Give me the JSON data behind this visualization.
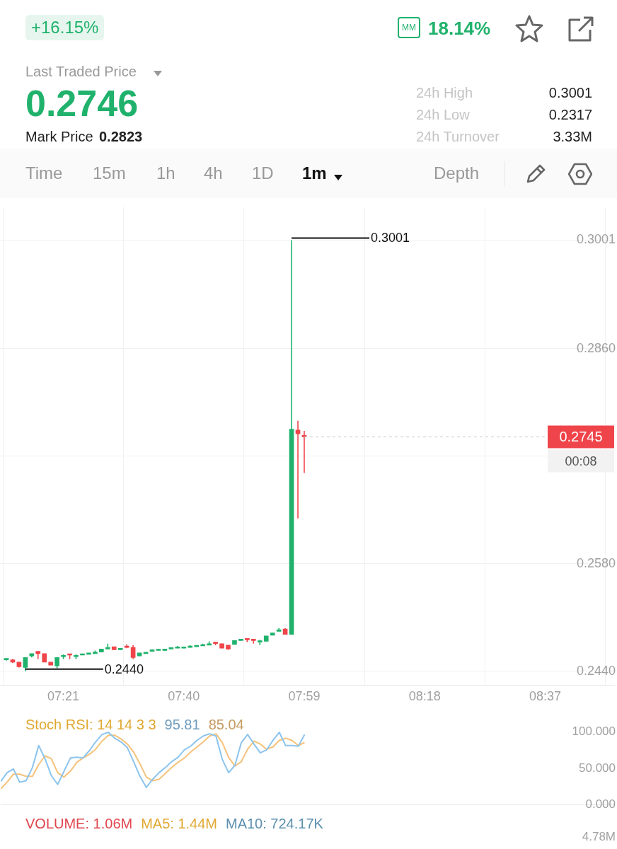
{
  "chart_data": [
    {
      "type": "other",
      "annotations": [
        "+16.15%",
        "MM",
        "18.14%",
        "Last Traded Price",
        "0.2746",
        "Mark Price",
        "0.2823",
        "24h High",
        "0.3001",
        "24h Low",
        "0.2317",
        "24h Turnover",
        "3.33M",
        "Time",
        "15m",
        "1h",
        "4h",
        "1D",
        "1m",
        "Depth"
      ]
    },
    {
      "type": "candlestick",
      "x": [
        7.2,
        7.2167,
        7.2333,
        7.25,
        7.2667,
        7.2833,
        7.3,
        7.3167,
        7.3333,
        7.35,
        7.3667,
        7.3833,
        7.4,
        7.4167,
        7.4333,
        7.45,
        7.4667,
        7.4833,
        7.5,
        7.5167,
        7.5333,
        7.55,
        7.5667,
        7.5833,
        7.6,
        7.6167,
        7.6333,
        7.65,
        7.6667,
        7.6833,
        7.7,
        7.7167,
        7.7333,
        7.75,
        7.7667,
        7.7833,
        7.8,
        7.8167,
        7.8333,
        7.85,
        7.8667,
        7.8833,
        7.9,
        7.9167,
        7.9333,
        7.95,
        7.9667,
        7.9833
      ],
      "ohlc": [
        [
          0.2455,
          0.2456,
          0.2454,
          0.2456
        ],
        [
          0.2455,
          0.2456,
          0.2451,
          0.2452
        ],
        [
          0.2452,
          0.2452,
          0.2445,
          0.2446
        ],
        [
          0.2445,
          0.2458,
          0.244,
          0.2458
        ],
        [
          0.246,
          0.2463,
          0.2458,
          0.2463
        ],
        [
          0.2466,
          0.2466,
          0.2456,
          0.2463
        ],
        [
          0.2463,
          0.2463,
          0.2452,
          0.2452
        ],
        [
          0.2452,
          0.2452,
          0.2448,
          0.2448
        ],
        [
          0.2447,
          0.2458,
          0.2444,
          0.2458
        ],
        [
          0.2459,
          0.2462,
          0.2456,
          0.246
        ],
        [
          0.2462,
          0.2462,
          0.2456,
          0.2461
        ],
        [
          0.2459,
          0.2462,
          0.2456,
          0.246
        ],
        [
          0.2461,
          0.2463,
          0.2461,
          0.2462
        ],
        [
          0.2462,
          0.2464,
          0.2462,
          0.2464
        ],
        [
          0.2463,
          0.2467,
          0.2463,
          0.2465
        ],
        [
          0.2465,
          0.2469,
          0.2465,
          0.2469
        ],
        [
          0.2469,
          0.2476,
          0.2469,
          0.2471
        ],
        [
          0.2472,
          0.2472,
          0.2468,
          0.2468
        ],
        [
          0.2468,
          0.247,
          0.2468,
          0.247
        ],
        [
          0.2472,
          0.2475,
          0.247,
          0.2471
        ],
        [
          0.2471,
          0.2474,
          0.2456,
          0.2458
        ],
        [
          0.246,
          0.2464,
          0.246,
          0.2464
        ],
        [
          0.2463,
          0.2464,
          0.2463,
          0.2464
        ],
        [
          0.2466,
          0.2468,
          0.2466,
          0.2468
        ],
        [
          0.2467,
          0.2469,
          0.2467,
          0.2468
        ],
        [
          0.2467,
          0.2469,
          0.2467,
          0.2469
        ],
        [
          0.2469,
          0.247,
          0.2469,
          0.247
        ],
        [
          0.247,
          0.2473,
          0.247,
          0.2471
        ],
        [
          0.247,
          0.2471,
          0.247,
          0.2471
        ],
        [
          0.2471,
          0.2474,
          0.2471,
          0.2472
        ],
        [
          0.2472,
          0.2473,
          0.2472,
          0.2473
        ],
        [
          0.2473,
          0.2476,
          0.2473,
          0.2474
        ],
        [
          0.2474,
          0.2479,
          0.2474,
          0.2475
        ],
        [
          0.2478,
          0.2478,
          0.2474,
          0.2476
        ],
        [
          0.2476,
          0.2476,
          0.247,
          0.247
        ],
        [
          0.2474,
          0.2474,
          0.2468,
          0.2469
        ],
        [
          0.2475,
          0.248,
          0.2475,
          0.248
        ],
        [
          0.248,
          0.2481,
          0.248,
          0.2481
        ],
        [
          0.2482,
          0.2482,
          0.2478,
          0.2481
        ],
        [
          0.2481,
          0.2481,
          0.2476,
          0.248
        ],
        [
          0.2478,
          0.2481,
          0.2474,
          0.2479
        ],
        [
          0.2479,
          0.2486,
          0.2479,
          0.2486
        ],
        [
          0.2487,
          0.249,
          0.2487,
          0.249
        ],
        [
          0.2492,
          0.2496,
          0.2492,
          0.2494
        ],
        [
          0.2495,
          0.2496,
          0.2488,
          0.2488
        ],
        [
          0.2488,
          0.3001,
          0.2488,
          0.2755
        ],
        [
          0.2754,
          0.2766,
          0.2639,
          0.2749
        ],
        [
          0.2747,
          0.2753,
          0.2698,
          0.2745
        ]
      ],
      "colors": [
        "#20b26c",
        "#ef454a",
        "#ef454a",
        "#20b26c",
        "#20b26c",
        "#ef454a",
        "#ef454a",
        "#ef454a",
        "#20b26c",
        "#20b26c",
        "#ef454a",
        "#20b26c",
        "#20b26c",
        "#20b26c",
        "#20b26c",
        "#20b26c",
        "#20b26c",
        "#ef454a",
        "#20b26c",
        "#ef454a",
        "#ef454a",
        "#20b26c",
        "#20b26c",
        "#20b26c",
        "#20b26c",
        "#20b26c",
        "#20b26c",
        "#20b26c",
        "#20b26c",
        "#20b26c",
        "#20b26c",
        "#20b26c",
        "#20b26c",
        "#ef454a",
        "#ef454a",
        "#ef454a",
        "#20b26c",
        "#20b26c",
        "#ef454a",
        "#ef454a",
        "#20b26c",
        "#20b26c",
        "#20b26c",
        "#20b26c",
        "#ef454a",
        "#20b26c",
        "#ef454a",
        "#ef454a"
      ],
      "xlim": [
        7.1833,
        8.7983
      ],
      "xticks": [
        {
          "value": 7.35,
          "label": "07:21"
        },
        {
          "value": 7.6667,
          "label": "07:40"
        },
        {
          "value": 7.9833,
          "label": "07:59"
        },
        {
          "value": 8.3,
          "label": "08:18"
        },
        {
          "value": 8.6167,
          "label": "08:37"
        }
      ],
      "ylim": [
        0.2422,
        0.3044
      ],
      "yticks": [
        {
          "value": 0.244,
          "label": "0.2440"
        },
        {
          "value": 0.258,
          "label": "0.2580"
        },
        {
          "value": 0.272,
          "label": null
        },
        {
          "value": 0.286,
          "label": "0.2860"
        },
        {
          "value": 0.3001,
          "label": "0.3001"
        }
      ],
      "grid": true,
      "ref_lines": [
        {
          "axis": "y",
          "value": 0.2745,
          "label": "0.2745",
          "color": "#c8c8c8",
          "line_style": "dashed"
        }
      ],
      "annotations": [
        {
          "text": "0.3001",
          "x": 7.95,
          "y": 0.3001
        },
        {
          "text": "0.2440",
          "x": 7.25,
          "y": 0.244
        },
        "00:08"
      ]
    },
    {
      "type": "line",
      "title": "Stoch RSI: 14 14 3 3",
      "legend": "top left",
      "tick_labels": "y",
      "x": [
        7.1833,
        7.2,
        7.2167,
        7.2333,
        7.25,
        7.2667,
        7.2833,
        7.3,
        7.3167,
        7.3333,
        7.35,
        7.3667,
        7.3833,
        7.4,
        7.4167,
        7.4333,
        7.45,
        7.4667,
        7.4833,
        7.5,
        7.5167,
        7.5333,
        7.55,
        7.5667,
        7.5833,
        7.6,
        7.6167,
        7.6333,
        7.65,
        7.6667,
        7.6833,
        7.7,
        7.7167,
        7.7333,
        7.75,
        7.7667,
        7.7833,
        7.8,
        7.8167,
        7.8333,
        7.85,
        7.8667,
        7.8833,
        7.9,
        7.9167,
        7.9333,
        7.95,
        7.9667,
        7.9833
      ],
      "xlim": [
        7.1833,
        8.7983
      ],
      "xticks": [
        {
          "value": 7.35,
          "label": null
        },
        {
          "value": 7.6667,
          "label": null
        },
        {
          "value": 7.9833,
          "label": null
        },
        {
          "value": 8.3,
          "label": null
        },
        {
          "value": 8.6167,
          "label": null
        }
      ],
      "ylim": [
        0,
        100
      ],
      "yticks": [
        {
          "value": 0,
          "label": "0.000"
        },
        {
          "value": 50,
          "label": "50.000"
        },
        {
          "value": 100,
          "label": "100.000"
        }
      ],
      "series": [
        {
          "name": "95.81",
          "color": "#8cc4ee",
          "values": [
            32,
            44,
            49,
            31,
            33,
            51,
            81,
            63,
            40,
            28,
            46,
            64,
            65,
            64,
            74,
            86,
            96,
            99,
            91,
            86,
            78,
            59,
            39,
            24,
            35,
            44,
            51,
            59,
            65,
            75,
            80,
            88,
            94,
            97,
            94,
            62,
            44,
            54,
            85,
            96,
            83,
            71,
            75,
            88,
            99,
            81,
            81,
            80,
            95.81
          ]
        },
        {
          "name": "85.04",
          "color": "#f5c27a",
          "values": [
            22,
            31,
            42,
            42,
            39,
            39,
            55,
            67,
            63,
            44,
            38,
            46,
            58,
            64,
            69,
            76,
            87,
            95,
            95,
            90,
            83,
            72,
            56,
            38,
            33,
            35,
            43,
            51,
            58,
            64,
            72,
            79,
            86,
            94,
            97,
            85,
            65,
            53,
            59,
            76,
            87,
            83,
            76,
            79,
            88,
            91,
            88,
            81,
            85.04
          ]
        }
      ]
    },
    {
      "type": "other",
      "title": "VOLUME: 1.06M",
      "annotations": [
        "MA5: 1.44M",
        "MA10: 724.17K",
        "4.78M"
      ]
    }
  ]
}
